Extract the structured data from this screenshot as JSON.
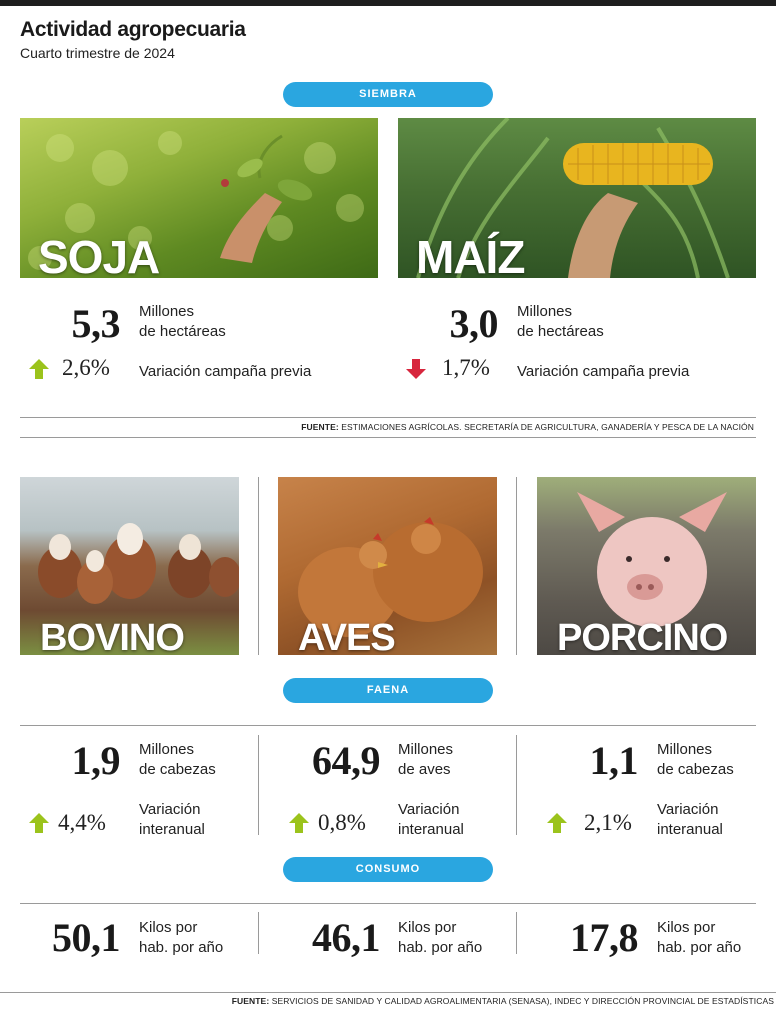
{
  "header": {
    "title": "Actividad agropecuaria",
    "subtitle": "Cuarto trimestre de 2024"
  },
  "siembra": {
    "pill": "SIEMBRA",
    "crops": [
      {
        "label": "SOJA",
        "value": "5,3",
        "unit": "Millones de hectáreas",
        "unit_line1": "Millones",
        "unit_line2": "de hectáreas",
        "change": "2,6%",
        "direction": "up",
        "change_label": "Variación campaña previa"
      },
      {
        "label": "MAÍZ",
        "value": "3,0",
        "unit": "Millones de hectáreas",
        "unit_line1": "Millones",
        "unit_line2": "de hectáreas",
        "change": "1,7%",
        "direction": "down",
        "change_label": "Variación campaña previa"
      }
    ],
    "source_bold": "FUENTE:",
    "source_text": " ESTIMACIONES AGRÍCOLAS. SECRETARÍA DE AGRICULTURA, GANADERÍA Y PESCA DE LA NACIÓN"
  },
  "animals": [
    {
      "label": "BOVINO",
      "faena_value": "1,9",
      "faena_unit_line1": "Millones",
      "faena_unit_line2": "de cabezas",
      "change": "4,4%",
      "direction": "up",
      "change_line1": "Variación",
      "change_line2": "interanual",
      "consumo_value": "50,1",
      "consumo_line1": "Kilos por",
      "consumo_line2": "hab. por año"
    },
    {
      "label": "AVES",
      "faena_value": "64,9",
      "faena_unit_line1": "Millones",
      "faena_unit_line2": "de aves",
      "change": "0,8%",
      "direction": "up",
      "change_line1": "Variación",
      "change_line2": "interanual",
      "consumo_value": "46,1",
      "consumo_line1": "Kilos por",
      "consumo_line2": "hab. por año"
    },
    {
      "label": "PORCINO",
      "faena_value": "1,1",
      "faena_unit_line1": "Millones",
      "faena_unit_line2": "de cabezas",
      "change": "2,1%",
      "direction": "up",
      "change_line1": "Variación",
      "change_line2": "interanual",
      "consumo_value": "17,8",
      "consumo_line1": "Kilos por",
      "consumo_line2": "hab. por año"
    }
  ],
  "faena_pill": "FAENA",
  "consumo_pill": "CONSUMO",
  "footer": {
    "source_bold": "FUENTE:",
    "source_text": " SERVICIOS DE SANIDAD Y CALIDAD AGROALIMENTARIA (SENASA), INDEC Y DIRECCIÓN PROVINCIAL DE ESTADÍSTICAS"
  },
  "colors": {
    "accent": "#2aa6e0",
    "up": "#9bc31c",
    "down": "#d7263d"
  },
  "icons": {
    "up": "arrow-up-icon",
    "down": "arrow-down-icon"
  }
}
